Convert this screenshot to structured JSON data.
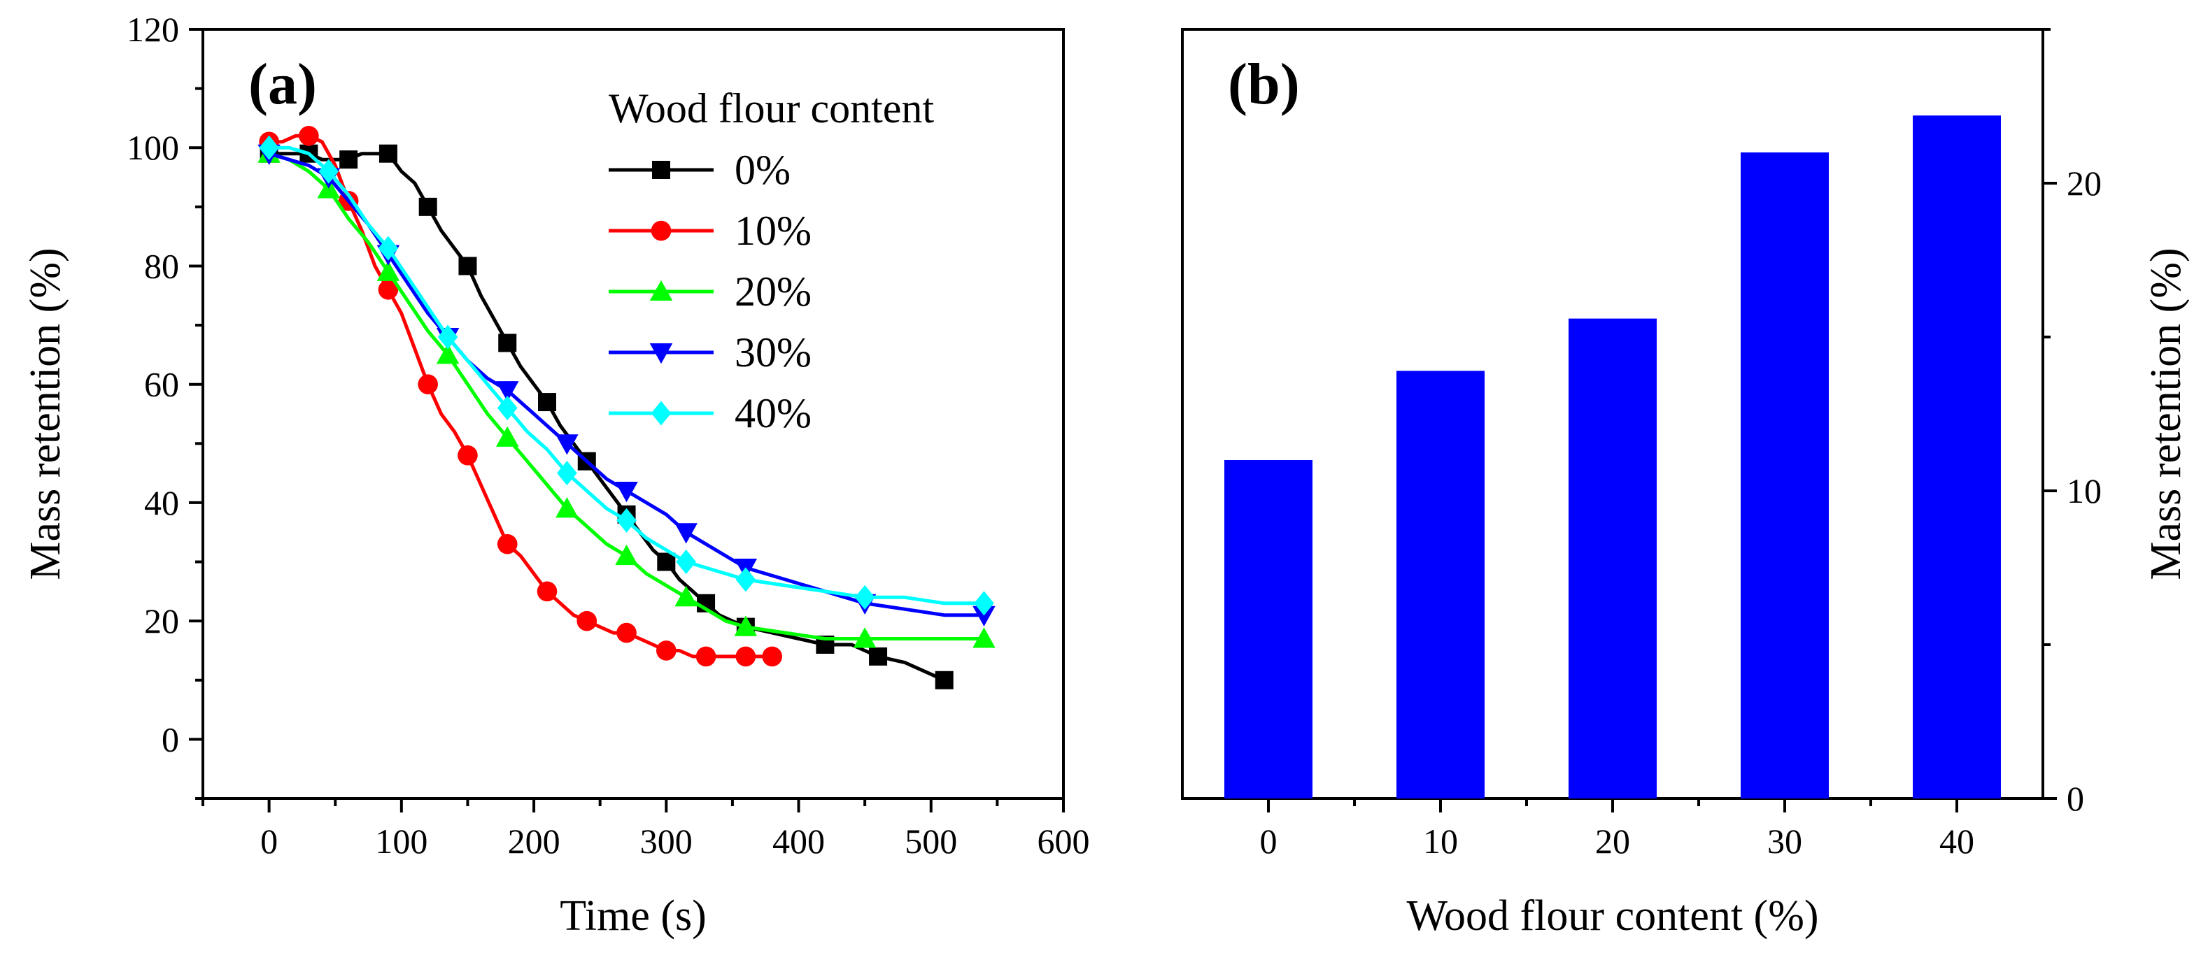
{
  "chart_data": [
    {
      "panel_label": "(a)",
      "type": "line",
      "xlabel": "Time (s)",
      "ylabel": "Mass retention (%)",
      "xlim": [
        -50,
        600
      ],
      "ylim": [
        -10,
        120
      ],
      "xticks": [
        0,
        100,
        200,
        300,
        400,
        500,
        600
      ],
      "yticks": [
        0,
        20,
        40,
        60,
        80,
        100,
        120
      ],
      "legend_title": "Wood flour content",
      "series": [
        {
          "name": "0%",
          "color": "#000000",
          "marker": "square",
          "x": [
            0,
            10,
            20,
            30,
            40,
            50,
            60,
            70,
            80,
            90,
            100,
            110,
            120,
            130,
            140,
            150,
            160,
            170,
            180,
            190,
            200,
            210,
            220,
            230,
            240,
            250,
            260,
            270,
            280,
            290,
            300,
            310,
            320,
            330,
            340,
            350,
            360,
            380,
            400,
            420,
            440,
            450,
            460,
            480,
            500,
            510
          ],
          "y": [
            99,
            99,
            99,
            99,
            98,
            98,
            98,
            99,
            99,
            99,
            96,
            94,
            90,
            86,
            83,
            80,
            75,
            71,
            67,
            63,
            60,
            57,
            53,
            50,
            47,
            44,
            41,
            38,
            35,
            32,
            30,
            27,
            25,
            23,
            21,
            20,
            19,
            18,
            17,
            16,
            16,
            15,
            14,
            13,
            11,
            10
          ]
        },
        {
          "name": "10%",
          "color": "#ff0000",
          "marker": "circle",
          "x": [
            0,
            10,
            20,
            30,
            40,
            50,
            60,
            70,
            80,
            90,
            100,
            110,
            120,
            130,
            140,
            150,
            160,
            170,
            180,
            190,
            200,
            210,
            220,
            230,
            240,
            250,
            260,
            270,
            280,
            290,
            300,
            310,
            320,
            330,
            340,
            350,
            360,
            370,
            380
          ],
          "y": [
            101,
            101,
            102,
            102,
            101,
            97,
            91,
            86,
            80,
            76,
            72,
            66,
            60,
            55,
            52,
            48,
            43,
            38,
            33,
            31,
            28,
            25,
            23,
            21,
            20,
            19,
            18,
            18,
            17,
            16,
            15,
            15,
            14,
            14,
            14,
            14,
            14,
            14,
            14
          ]
        },
        {
          "name": "20%",
          "color": "#00ff00",
          "marker": "triangle",
          "x": [
            0,
            15,
            30,
            45,
            60,
            75,
            90,
            105,
            120,
            135,
            150,
            165,
            180,
            195,
            210,
            225,
            240,
            255,
            270,
            285,
            300,
            315,
            330,
            345,
            360,
            390,
            420,
            450,
            480,
            510,
            540
          ],
          "y": [
            99,
            98,
            96,
            93,
            88,
            84,
            79,
            74,
            69,
            65,
            60,
            55,
            51,
            47,
            43,
            39,
            36,
            33,
            31,
            28,
            26,
            24,
            22,
            20,
            19,
            18,
            17,
            17,
            17,
            17,
            17
          ]
        },
        {
          "name": "30%",
          "color": "#0000ff",
          "marker": "triangle-down",
          "x": [
            0,
            15,
            30,
            45,
            60,
            75,
            90,
            105,
            120,
            135,
            150,
            165,
            180,
            195,
            210,
            225,
            240,
            255,
            270,
            285,
            300,
            315,
            330,
            345,
            360,
            390,
            420,
            450,
            480,
            510,
            540
          ],
          "y": [
            99,
            98,
            97,
            95,
            91,
            87,
            82,
            77,
            72,
            68,
            64,
            61,
            59,
            56,
            53,
            50,
            47,
            44,
            42,
            40,
            38,
            35,
            33,
            31,
            29,
            27,
            25,
            23,
            22,
            21,
            21
          ]
        },
        {
          "name": "40%",
          "color": "#00ffff",
          "marker": "diamond",
          "x": [
            0,
            15,
            30,
            45,
            60,
            75,
            90,
            105,
            120,
            135,
            150,
            165,
            180,
            195,
            210,
            225,
            240,
            255,
            270,
            285,
            300,
            315,
            330,
            345,
            360,
            390,
            420,
            450,
            480,
            510,
            540
          ],
          "y": [
            100,
            100,
            99,
            96,
            92,
            87,
            83,
            78,
            73,
            68,
            64,
            60,
            56,
            52,
            49,
            45,
            42,
            39,
            37,
            34,
            32,
            30,
            29,
            28,
            27,
            26,
            25,
            24,
            24,
            23,
            23
          ]
        }
      ]
    },
    {
      "panel_label": "(b)",
      "type": "bar",
      "xlabel": "Wood flour content (%)",
      "ylabel": "Mass retention (%)",
      "categories": [
        "0",
        "10",
        "20",
        "30",
        "40"
      ],
      "values": [
        11.0,
        13.9,
        15.6,
        21.0,
        22.2
      ],
      "ylim": [
        0,
        25
      ],
      "yticks": [
        0,
        10,
        20
      ],
      "color": "#0000ff"
    }
  ]
}
